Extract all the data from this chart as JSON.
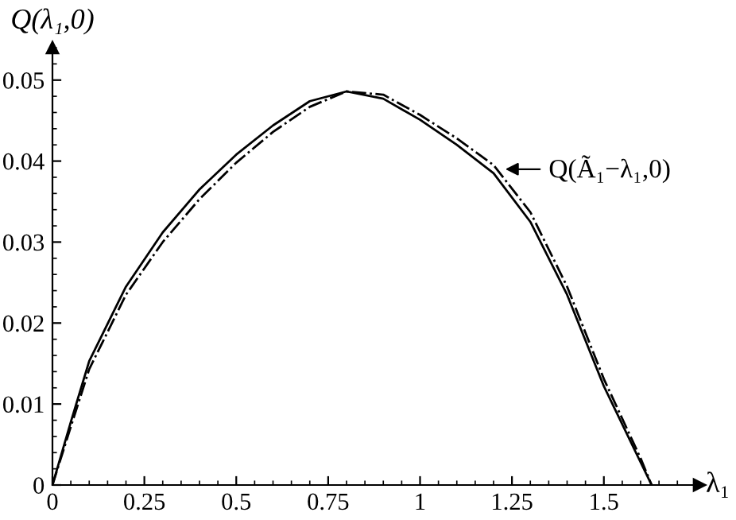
{
  "chart_data": {
    "type": "line",
    "xlabel": "λ₁",
    "ylabel": "Q(λ₁,0)",
    "annotations": [
      {
        "text": "Q(Ã₁−λ₁,0)",
        "x": 1.22,
        "y": 0.039
      }
    ],
    "xlim": [
      0,
      1.76
    ],
    "ylim": [
      0,
      0.054
    ],
    "xticks": [
      0,
      0.25,
      0.5,
      0.75,
      1,
      1.25,
      1.5
    ],
    "yticks": [
      0,
      0.01,
      0.02,
      0.03,
      0.04,
      0.05
    ],
    "grid": false,
    "legend": false,
    "marker": "none",
    "series": [
      {
        "color": "#000000",
        "line_style": "solid",
        "x": [
          0,
          0.05,
          0.1,
          0.2,
          0.3,
          0.4,
          0.5,
          0.6,
          0.7,
          0.8,
          0.9,
          1.0,
          1.1,
          1.2,
          1.3,
          1.4,
          1.5,
          1.6,
          1.63
        ],
        "values": [
          0,
          0.0078,
          0.0153,
          0.0245,
          0.0312,
          0.0365,
          0.0408,
          0.0444,
          0.0474,
          0.0486,
          0.0477,
          0.0451,
          0.042,
          0.0385,
          0.0325,
          0.0235,
          0.0122,
          0.0028,
          0
        ]
      },
      {
        "color": "#000000",
        "line_style": "dashdot",
        "x": [
          0,
          0.05,
          0.1,
          0.2,
          0.3,
          0.4,
          0.5,
          0.6,
          0.7,
          0.8,
          0.9,
          1.0,
          1.1,
          1.2,
          1.3,
          1.4,
          1.5,
          1.6,
          1.63
        ],
        "values": [
          0,
          0.0072,
          0.0143,
          0.0235,
          0.03,
          0.0353,
          0.0398,
          0.0436,
          0.0467,
          0.0486,
          0.0482,
          0.0457,
          0.0428,
          0.0395,
          0.0337,
          0.0245,
          0.0131,
          0.0033,
          0
        ]
      }
    ]
  }
}
